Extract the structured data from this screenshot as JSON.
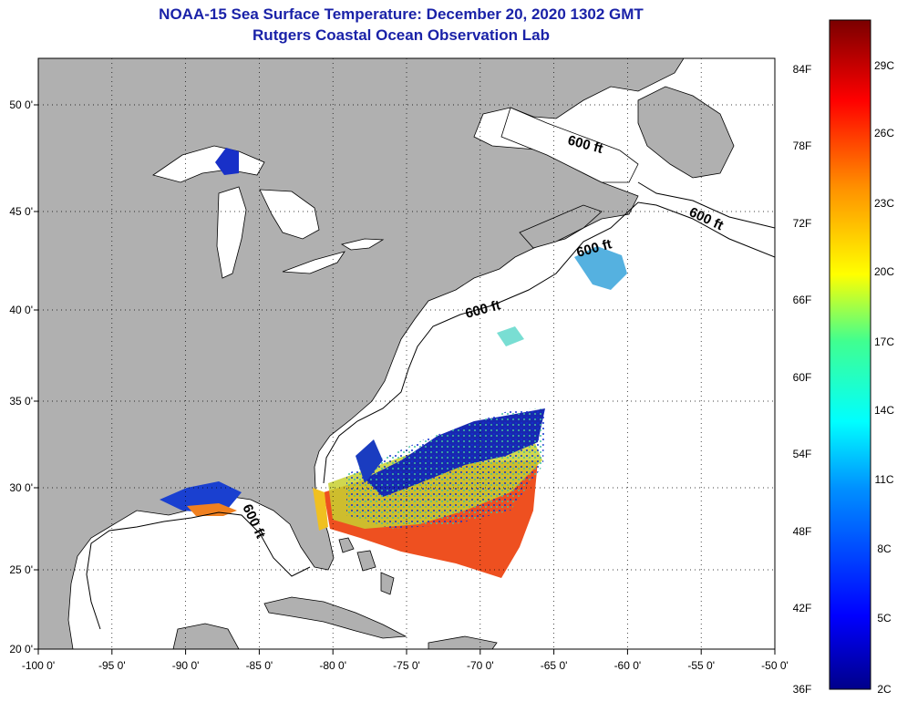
{
  "header": {
    "title_line1": "NOAA-15 Sea Surface Temperature:  December 20, 2020 1302 GMT",
    "title_line2": "Rutgers Coastal Ocean Observation Lab"
  },
  "map": {
    "lon_ticks": [
      "-100 0'",
      "-95 0'",
      "-90 0'",
      "-85 0'",
      "-80 0'",
      "-75 0'",
      "-70 0'",
      "-65 0'",
      "-60 0'",
      "-55 0'",
      "-50 0'"
    ],
    "lat_ticks": [
      "50 0'",
      "45 0'",
      "40 0'",
      "35 0'",
      "30 0'",
      "25 0'",
      "20 0'"
    ],
    "contour_label": "600 ft",
    "colors": {
      "land": "#b0b0b0",
      "ocean": "#ffffff",
      "title": "#1a22a8"
    }
  },
  "colorbar": {
    "fahrenheit_labels": [
      "84F",
      "78F",
      "72F",
      "66F",
      "60F",
      "54F",
      "48F",
      "42F",
      "36F"
    ],
    "celsius_labels": [
      "29C",
      "26C",
      "23C",
      "20C",
      "17C",
      "14C",
      "11C",
      "8C",
      "5C",
      "2C"
    ]
  }
}
